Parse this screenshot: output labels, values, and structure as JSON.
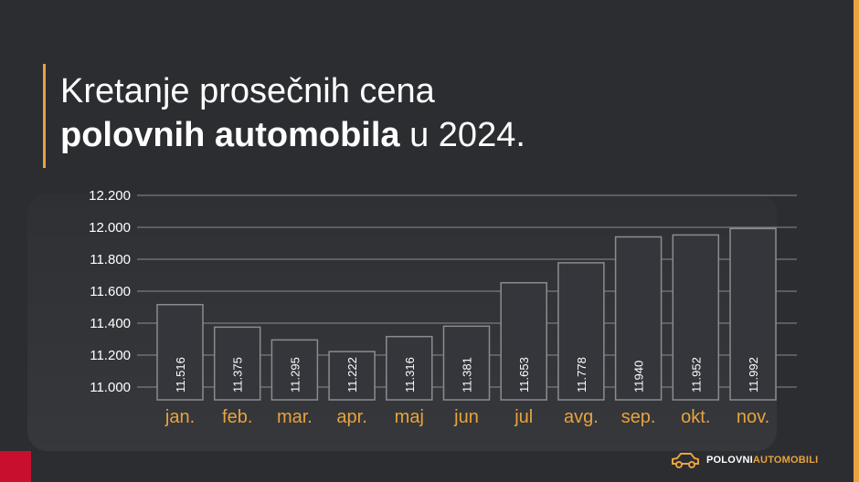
{
  "title": {
    "line1": "Kretanje prosečnih cena",
    "line2_bold": "polovnih automobila",
    "line2_rest": " u 2024."
  },
  "logo": {
    "part1": "POLOVNI",
    "part2": "AUTOMOBILI",
    "icon": "car-icon"
  },
  "colors": {
    "background": "#2b2d31",
    "accent": "#e8a33d",
    "red": "#c8102e",
    "bar_fill": "#34363c",
    "bar_stroke": "#8a8c90"
  },
  "chart_data": {
    "type": "bar",
    "categories": [
      "jan.",
      "feb.",
      "mar.",
      "apr.",
      "maj",
      "jun",
      "jul",
      "avg.",
      "sep.",
      "okt.",
      "nov."
    ],
    "values": [
      11516,
      11375,
      11295,
      11222,
      11316,
      11381,
      11653,
      11778,
      11940,
      11952,
      11992
    ],
    "data_labels": [
      "11.516",
      "11.375",
      "11.295",
      "11.222",
      "11.316",
      "11.381",
      "11.653",
      "11.778",
      "11940",
      "11.952",
      "11.992"
    ],
    "y_ticks": [
      11000,
      11200,
      11400,
      11600,
      11800,
      12000,
      12200
    ],
    "y_tick_labels": [
      "11.000",
      "11.200",
      "11.400",
      "11.600",
      "11.800",
      "12.000",
      "12.200"
    ],
    "ylim": [
      11000,
      12200
    ],
    "grid": true,
    "legend": "none",
    "xlabel": "",
    "ylabel": ""
  }
}
